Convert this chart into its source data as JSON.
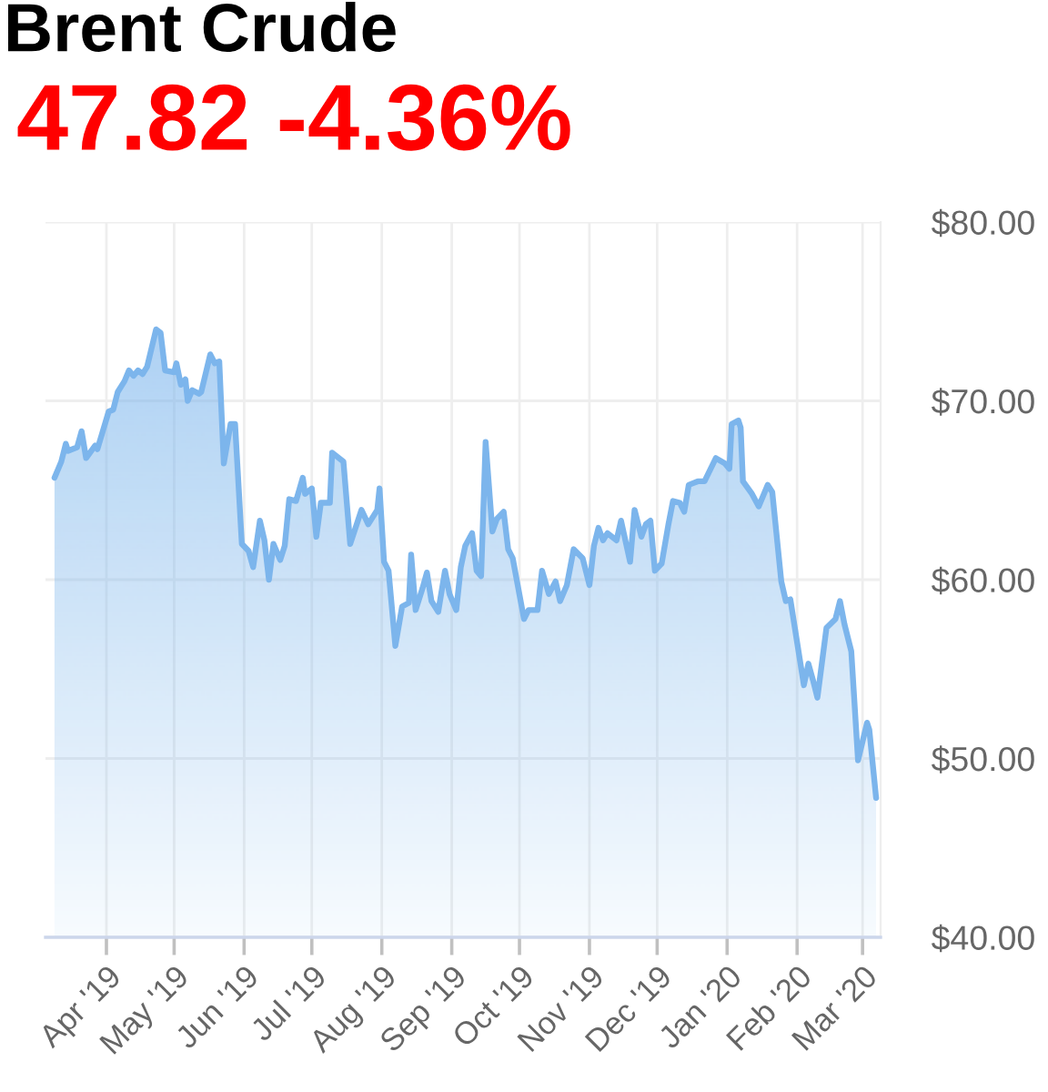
{
  "chart_data": {
    "type": "area",
    "title": "Brent Crude",
    "subtitle": "47.82 -4.36%",
    "x": [
      "2019-03-09",
      "2019-03-12",
      "2019-03-14",
      "2019-03-15",
      "2019-03-19",
      "2019-03-21",
      "2019-03-23",
      "2019-03-27",
      "2019-03-28",
      "2019-04-02",
      "2019-04-04",
      "2019-04-06",
      "2019-04-09",
      "2019-04-11",
      "2019-04-13",
      "2019-04-15",
      "2019-04-17",
      "2019-04-19",
      "2019-04-23",
      "2019-04-25",
      "2019-04-27",
      "2019-05-01",
      "2019-05-02",
      "2019-05-04",
      "2019-05-06",
      "2019-05-07",
      "2019-05-09",
      "2019-05-12",
      "2019-05-13",
      "2019-05-17",
      "2019-05-19",
      "2019-05-21",
      "2019-05-23",
      "2019-05-26",
      "2019-05-28",
      "2019-05-31",
      "2019-06-03",
      "2019-06-05",
      "2019-06-08",
      "2019-06-10",
      "2019-06-12",
      "2019-06-14",
      "2019-06-17",
      "2019-06-19",
      "2019-06-21",
      "2019-06-24",
      "2019-06-27",
      "2019-06-28",
      "2019-07-01",
      "2019-07-03",
      "2019-07-05",
      "2019-07-09",
      "2019-07-10",
      "2019-07-15",
      "2019-07-18",
      "2019-07-23",
      "2019-07-26",
      "2019-07-30",
      "2019-07-31",
      "2019-08-02",
      "2019-08-04",
      "2019-08-07",
      "2019-08-10",
      "2019-08-13",
      "2019-08-14",
      "2019-08-16",
      "2019-08-19",
      "2019-08-21",
      "2019-08-23",
      "2019-08-26",
      "2019-08-29",
      "2019-08-31",
      "2019-09-03",
      "2019-09-05",
      "2019-09-07",
      "2019-09-10",
      "2019-09-12",
      "2019-09-14",
      "2019-09-16",
      "2019-09-19",
      "2019-09-21",
      "2019-09-24",
      "2019-09-26",
      "2019-09-28",
      "2019-10-03",
      "2019-10-05",
      "2019-10-09",
      "2019-10-11",
      "2019-10-14",
      "2019-10-17",
      "2019-10-19",
      "2019-10-22",
      "2019-10-25",
      "2019-10-29",
      "2019-11-01",
      "2019-11-03",
      "2019-11-05",
      "2019-11-07",
      "2019-11-09",
      "2019-11-13",
      "2019-11-15",
      "2019-11-19",
      "2019-11-21",
      "2019-11-24",
      "2019-11-26",
      "2019-11-28",
      "2019-11-30",
      "2019-12-03",
      "2019-12-06",
      "2019-12-08",
      "2019-12-11",
      "2019-12-13",
      "2019-12-15",
      "2019-12-19",
      "2019-12-22",
      "2019-12-27",
      "2019-12-31",
      "2020-01-02",
      "2020-01-03",
      "2020-01-06",
      "2020-01-07",
      "2020-01-08",
      "2020-01-12",
      "2020-01-15",
      "2020-01-19",
      "2020-01-21",
      "2020-01-25",
      "2020-01-27",
      "2020-01-29",
      "2020-02-01",
      "2020-02-04",
      "2020-02-06",
      "2020-02-08",
      "2020-02-10",
      "2020-02-14",
      "2020-02-18",
      "2020-02-20",
      "2020-02-22",
      "2020-02-25",
      "2020-02-28",
      "2020-03-03",
      "2020-03-04",
      "2020-03-07"
    ],
    "values": [
      65.7,
      66.6,
      67.6,
      67.2,
      67.4,
      68.3,
      66.8,
      67.5,
      67.3,
      69.4,
      69.5,
      70.5,
      71.1,
      71.7,
      71.4,
      71.7,
      71.5,
      71.9,
      74.0,
      73.8,
      71.7,
      71.6,
      72.1,
      70.9,
      71.2,
      70.0,
      70.6,
      70.4,
      70.5,
      72.6,
      72.1,
      72.2,
      66.5,
      68.7,
      68.7,
      62.0,
      61.6,
      60.7,
      63.3,
      62.2,
      60.0,
      62.0,
      61.1,
      61.9,
      64.5,
      64.4,
      65.7,
      64.8,
      65.1,
      62.4,
      64.3,
      64.3,
      67.1,
      66.6,
      62.0,
      63.9,
      63.1,
      63.9,
      65.1,
      61.0,
      60.5,
      56.3,
      58.5,
      58.7,
      61.4,
      58.3,
      59.5,
      60.4,
      58.8,
      58.2,
      60.5,
      59.2,
      58.3,
      60.7,
      61.9,
      62.6,
      60.5,
      60.2,
      67.7,
      62.7,
      63.4,
      63.8,
      61.7,
      61.2,
      57.8,
      58.3,
      58.3,
      60.5,
      59.2,
      59.9,
      58.8,
      59.7,
      61.7,
      61.2,
      59.7,
      61.9,
      62.9,
      62.2,
      62.6,
      62.2,
      63.3,
      61.0,
      63.9,
      62.4,
      63.1,
      63.3,
      60.5,
      60.9,
      63.1,
      64.4,
      64.3,
      63.8,
      65.3,
      65.5,
      65.5,
      66.8,
      66.5,
      66.2,
      68.7,
      68.9,
      68.5,
      65.5,
      64.8,
      64.1,
      65.3,
      64.9,
      59.9,
      58.8,
      58.9,
      56.5,
      54.1,
      55.3,
      54.4,
      53.4,
      57.3,
      57.8,
      58.8,
      57.5,
      56.0,
      49.9,
      52.0,
      51.6,
      47.8
    ],
    "color": "#7cb5ec",
    "xlim": [
      "2019-03-05",
      "2020-03-09"
    ],
    "xticks": [
      {
        "value": "2019-04-01",
        "label": "Apr '19"
      },
      {
        "value": "2019-05-01",
        "label": "May '19"
      },
      {
        "value": "2019-06-01",
        "label": "Jun '19"
      },
      {
        "value": "2019-07-01",
        "label": "Jul '19"
      },
      {
        "value": "2019-08-01",
        "label": "Aug '19"
      },
      {
        "value": "2019-09-01",
        "label": "Sep '19"
      },
      {
        "value": "2019-10-01",
        "label": "Oct '19"
      },
      {
        "value": "2019-11-01",
        "label": "Nov '19"
      },
      {
        "value": "2019-12-01",
        "label": "Dec '19"
      },
      {
        "value": "2020-01-01",
        "label": "Jan '20"
      },
      {
        "value": "2020-02-01",
        "label": "Feb '20"
      },
      {
        "value": "2020-03-01",
        "label": "Mar '20"
      }
    ],
    "ylim": [
      40,
      80
    ],
    "yticks": [
      {
        "value": 40,
        "label": "$40.00"
      },
      {
        "value": 50,
        "label": "$50.00"
      },
      {
        "value": 60,
        "label": "$60.00"
      },
      {
        "value": 70,
        "label": "$70.00"
      },
      {
        "value": 80,
        "label": "$80.00"
      }
    ],
    "grid": true
  }
}
